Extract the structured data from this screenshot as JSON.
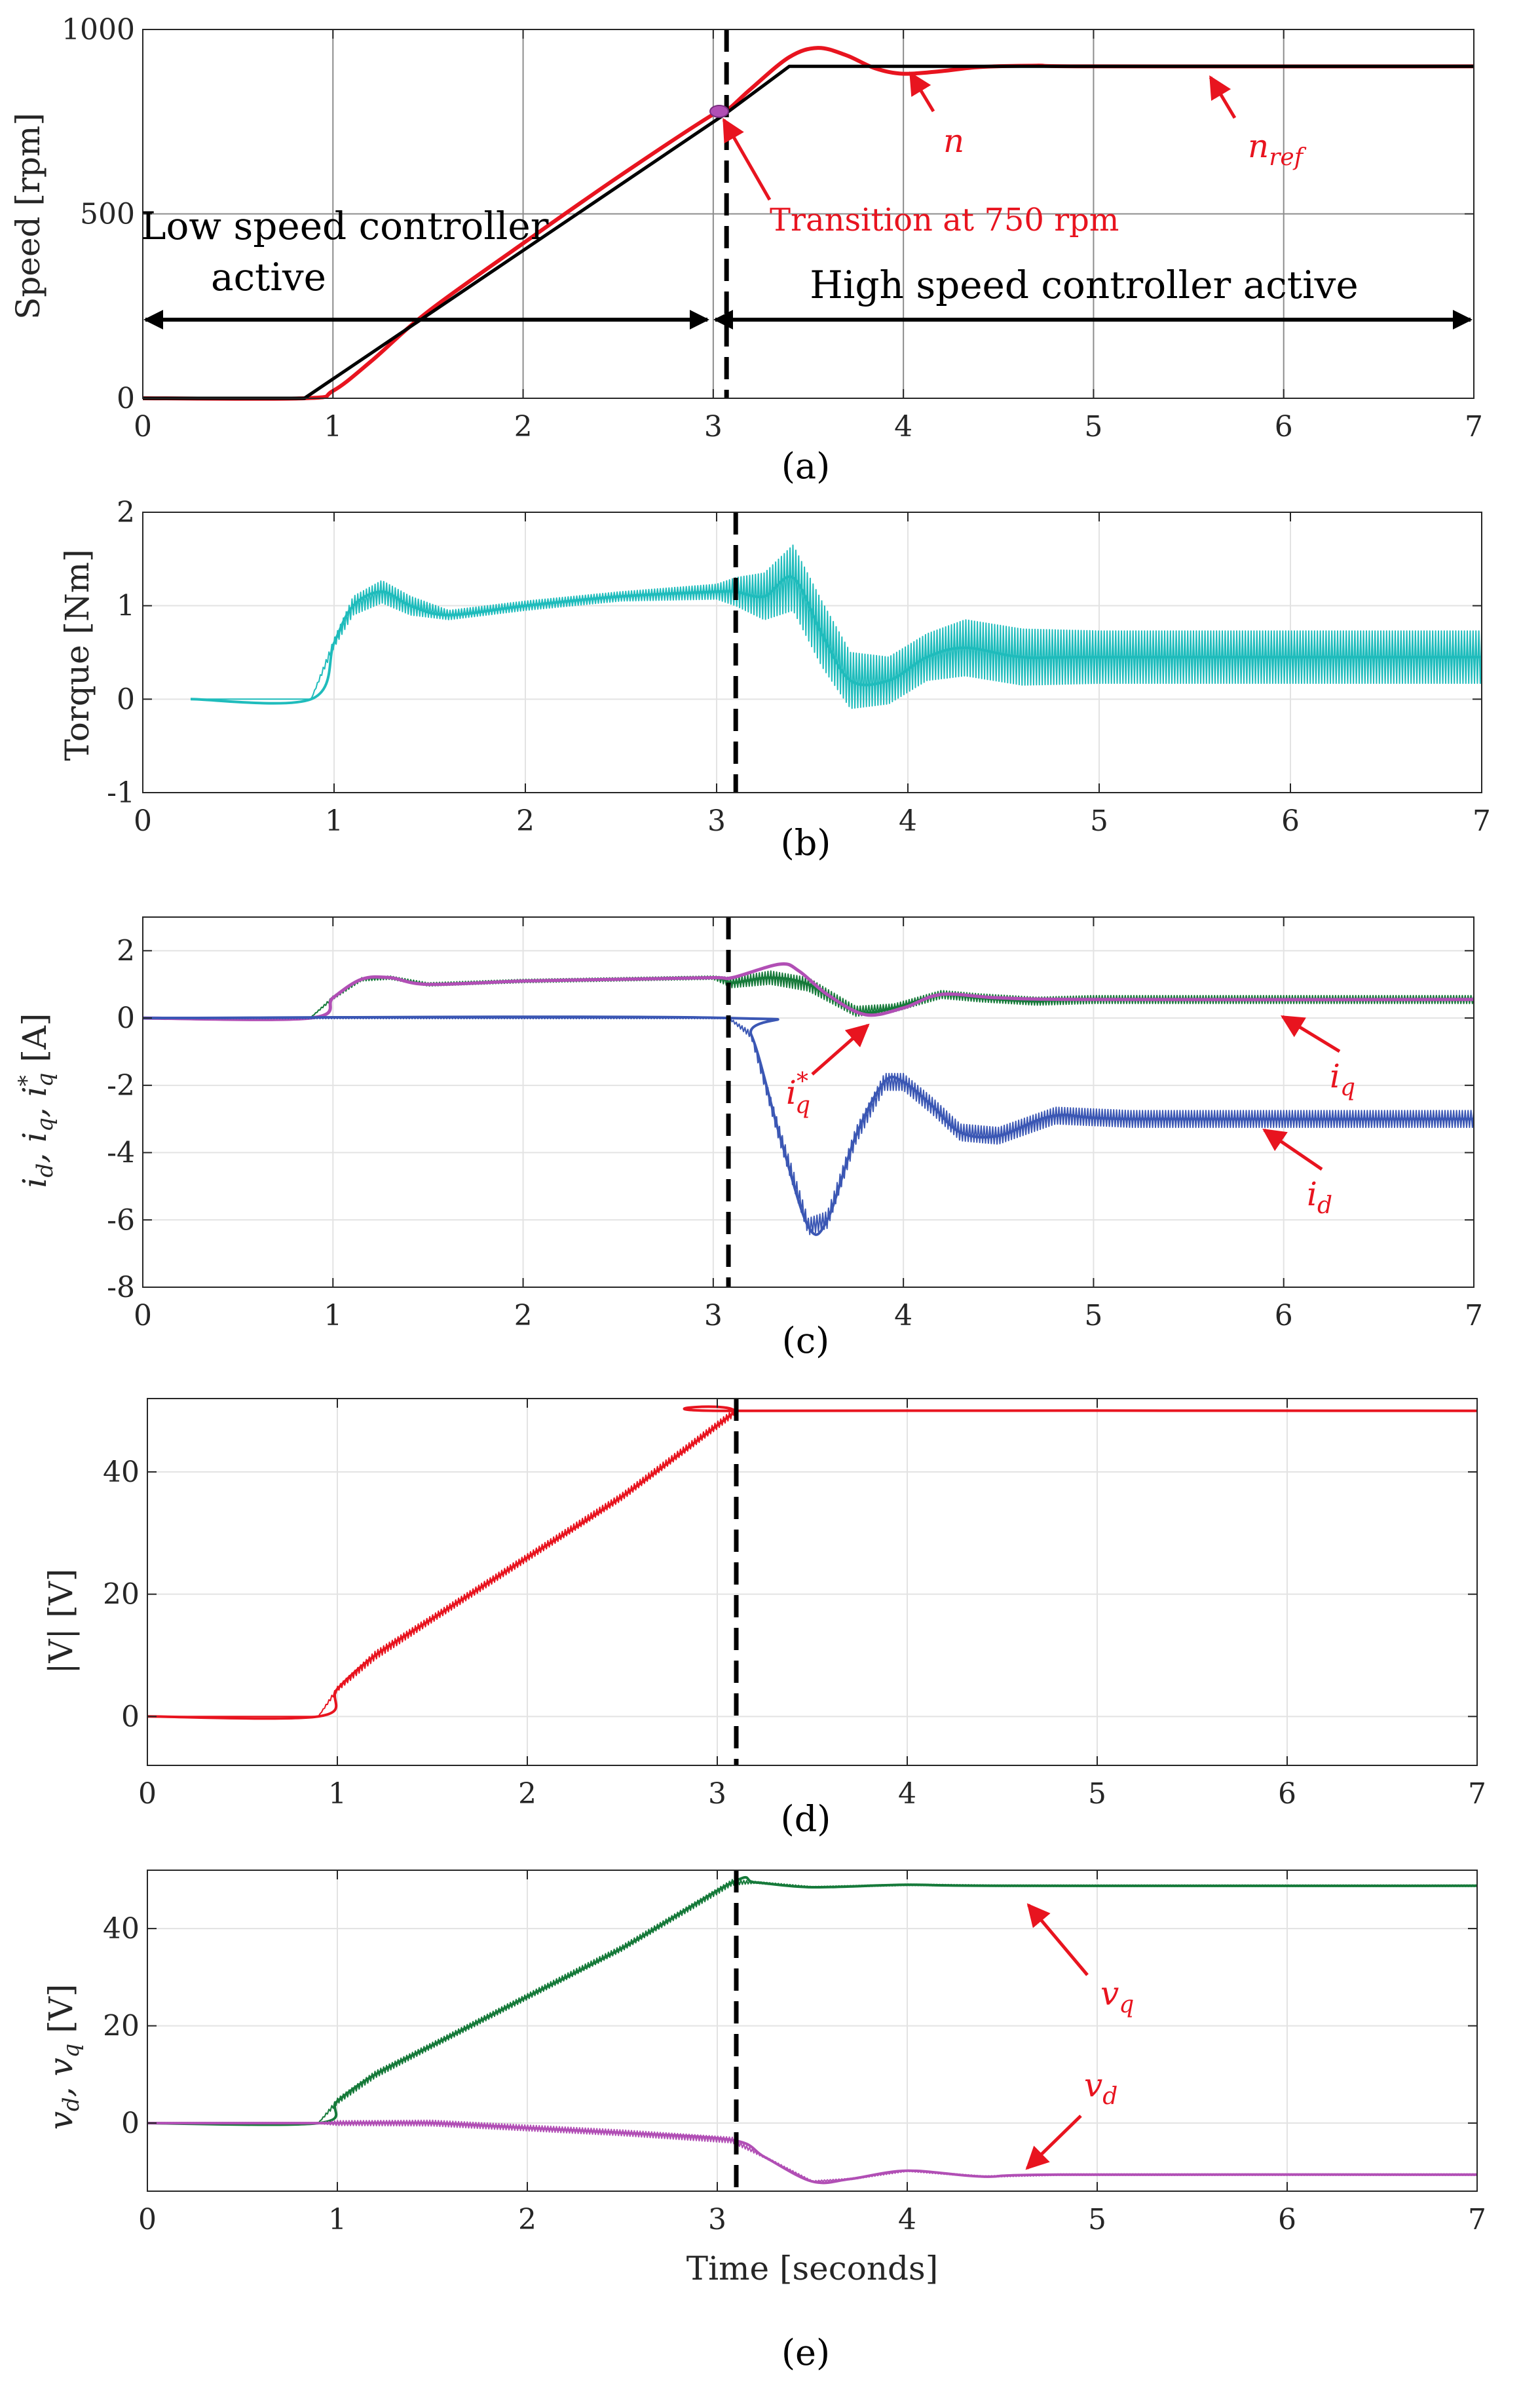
{
  "chart_data": [
    {
      "id": "a",
      "type": "line",
      "caption": "(a)",
      "ylabel": "Speed [rpm]",
      "xlabel": "",
      "xlim": [
        0,
        7
      ],
      "ylim": [
        0,
        1000
      ],
      "xticks": [
        "0",
        "1",
        "2",
        "3",
        "4",
        "5",
        "6",
        "7"
      ],
      "yticks": [
        "0",
        "500",
        "1000"
      ],
      "ytick_values": [
        0,
        500,
        1000
      ],
      "grid": true,
      "transition_time": 3.07,
      "series": [
        {
          "name": "n_ref",
          "color": "#000000",
          "x": [
            0,
            0.85,
            3.06,
            3.4,
            7
          ],
          "y": [
            0,
            0,
            770,
            900,
            900
          ]
        },
        {
          "name": "n",
          "color": "#e8141f",
          "x": [
            0,
            0.85,
            1.0,
            1.2,
            1.5,
            2.0,
            2.5,
            3.0,
            3.07,
            3.2,
            3.4,
            3.55,
            3.7,
            3.85,
            4.0,
            4.2,
            4.4,
            4.7,
            5.0,
            7.0
          ],
          "y": [
            0,
            0,
            20,
            100,
            235,
            420,
            600,
            770,
            780,
            840,
            925,
            950,
            930,
            895,
            880,
            887,
            898,
            902,
            900,
            900
          ]
        }
      ],
      "annotations": {
        "transition": "Transition at 750 rpm",
        "low": "Low speed controller",
        "low2": "active",
        "high": "High speed controller active",
        "n": "n",
        "nref": "n",
        "nref_sub": "ref"
      }
    },
    {
      "id": "b",
      "type": "line",
      "caption": "(b)",
      "ylabel": "Torque [Nm]",
      "xlim": [
        0,
        7
      ],
      "ylim": [
        -1,
        2
      ],
      "xticks": [
        "0",
        "1",
        "2",
        "3",
        "4",
        "5",
        "6",
        "7"
      ],
      "yticks": [
        "-1",
        "0",
        "1",
        "2"
      ],
      "ytick_values": [
        -1,
        0,
        1,
        2
      ],
      "grid": true,
      "transition_time": 3.1,
      "series": [
        {
          "name": "torque",
          "color": "#1fbcbc",
          "x": [
            0.25,
            0.88,
            1.0,
            1.1,
            1.25,
            1.4,
            1.6,
            2.0,
            2.5,
            3.0,
            3.1,
            3.25,
            3.4,
            3.55,
            3.7,
            3.9,
            4.1,
            4.3,
            4.6,
            5.0,
            7.0
          ],
          "y": [
            0,
            0,
            0.6,
            1.0,
            1.15,
            1.0,
            0.9,
            1.0,
            1.1,
            1.15,
            1.15,
            1.1,
            1.3,
            0.7,
            0.2,
            0.2,
            0.45,
            0.55,
            0.45,
            0.45,
            0.45
          ],
          "ripple": [
            0,
            0,
            0.05,
            0.1,
            0.12,
            0.1,
            0.05,
            0.05,
            0.05,
            0.08,
            0.15,
            0.25,
            0.35,
            0.35,
            0.3,
            0.25,
            0.25,
            0.3,
            0.3,
            0.28,
            0.28
          ]
        }
      ]
    },
    {
      "id": "c",
      "type": "line",
      "caption": "(c)",
      "ylabel": "i_d, i_q, i*_q [A]",
      "xlim": [
        0,
        7
      ],
      "ylim": [
        -8,
        3
      ],
      "xticks": [
        "0",
        "1",
        "2",
        "3",
        "4",
        "5",
        "6",
        "7"
      ],
      "yticks": [
        "-8",
        "-6",
        "-4",
        "-2",
        "0",
        "2"
      ],
      "ytick_values": [
        -8,
        -6,
        -4,
        -2,
        0,
        2
      ],
      "grid": true,
      "transition_time": 3.08,
      "series": [
        {
          "name": "i_q",
          "color": "#167a3a",
          "x": [
            0,
            0.88,
            1.0,
            1.15,
            1.3,
            1.5,
            2.0,
            2.5,
            3.0,
            3.1,
            3.3,
            3.5,
            3.75,
            3.95,
            4.2,
            4.4,
            4.7,
            5.0,
            7.0
          ],
          "y": [
            0,
            0,
            0.6,
            1.15,
            1.2,
            1.0,
            1.1,
            1.15,
            1.2,
            1.05,
            1.2,
            1.0,
            0.2,
            0.3,
            0.7,
            0.6,
            0.5,
            0.55,
            0.55
          ],
          "ripple": [
            0,
            0,
            0.05,
            0.05,
            0.05,
            0.05,
            0.05,
            0.05,
            0.05,
            0.15,
            0.2,
            0.2,
            0.15,
            0.12,
            0.12,
            0.12,
            0.12,
            0.12,
            0.12
          ]
        },
        {
          "name": "i*_q",
          "color": "#b14fb5",
          "x": [
            0,
            0.88,
            1.0,
            1.15,
            1.3,
            1.5,
            2.0,
            2.5,
            3.0,
            3.1,
            3.35,
            3.45,
            3.6,
            3.8,
            4.0,
            4.2,
            4.5,
            5.0,
            7.0
          ],
          "y": [
            0,
            0,
            0.6,
            1.15,
            1.2,
            1.0,
            1.1,
            1.15,
            1.2,
            1.2,
            1.6,
            1.4,
            0.7,
            0.1,
            0.3,
            0.7,
            0.6,
            0.55,
            0.55
          ]
        },
        {
          "name": "i_d",
          "color": "#3b57b4",
          "x": [
            0,
            3.08,
            3.2,
            3.35,
            3.5,
            3.6,
            3.75,
            3.9,
            4.0,
            4.15,
            4.3,
            4.5,
            4.8,
            5.2,
            7.0
          ],
          "y": [
            0,
            0,
            -0.5,
            -3.5,
            -6.2,
            -6.0,
            -3.5,
            -1.9,
            -1.9,
            -2.6,
            -3.4,
            -3.5,
            -2.9,
            -3.0,
            -3.0
          ],
          "ripple": [
            0.02,
            0.02,
            0.1,
            0.25,
            0.25,
            0.25,
            0.25,
            0.25,
            0.25,
            0.25,
            0.25,
            0.25,
            0.25,
            0.25,
            0.25
          ]
        }
      ],
      "annotations": {
        "iq": "i",
        "iq_sub": "q",
        "iqs": "i",
        "iqs_sub": "q",
        "iqs_sup": "*",
        "id": "i",
        "id_sub": "d"
      }
    },
    {
      "id": "d",
      "type": "line",
      "caption": "(d)",
      "ylabel": "|V| [V]",
      "xlim": [
        0,
        7
      ],
      "ylim": [
        -8,
        52
      ],
      "xticks": [
        "0",
        "1",
        "2",
        "3",
        "4",
        "5",
        "6",
        "7"
      ],
      "yticks": [
        "0",
        "20",
        "40"
      ],
      "ytick_values": [
        0,
        20,
        40
      ],
      "grid": true,
      "transition_time": 3.1,
      "series": [
        {
          "name": "|V|",
          "color": "#e8141f",
          "x": [
            0,
            0.9,
            1.0,
            1.2,
            1.5,
            2.0,
            2.5,
            3.08,
            3.1,
            7.0
          ],
          "y": [
            0,
            0,
            4.5,
            10,
            16,
            26,
            36,
            49.5,
            50,
            50
          ],
          "ripple": [
            0,
            0,
            0.4,
            0.7,
            0.6,
            0.6,
            0.6,
            0.6,
            0,
            0
          ]
        }
      ]
    },
    {
      "id": "e",
      "type": "line",
      "caption": "(e)",
      "ylabel": "v_d, v_q [V]",
      "xlabel": "Time [seconds]",
      "xlim": [
        0,
        7
      ],
      "ylim": [
        -14,
        52
      ],
      "xticks": [
        "0",
        "1",
        "2",
        "3",
        "4",
        "5",
        "6",
        "7"
      ],
      "yticks": [
        "0",
        "20",
        "40"
      ],
      "ytick_values": [
        0,
        20,
        40
      ],
      "grid": true,
      "transition_time": 3.1,
      "series": [
        {
          "name": "v_q",
          "color": "#167a3a",
          "x": [
            0,
            0.9,
            1.0,
            1.2,
            1.5,
            2.0,
            2.5,
            3.08,
            3.2,
            3.5,
            4.0,
            4.5,
            7.0
          ],
          "y": [
            0,
            0,
            4.5,
            10,
            16,
            26,
            36,
            49.5,
            49.5,
            48.5,
            49,
            48.8,
            48.8
          ],
          "ripple": [
            0,
            0,
            0.6,
            0.7,
            0.6,
            0.6,
            0.6,
            0.6,
            0.2,
            0.15,
            0.15,
            0.15,
            0.15
          ]
        },
        {
          "name": "v_d",
          "color": "#b14fb5",
          "x": [
            0,
            0.9,
            1.0,
            1.5,
            2.0,
            2.5,
            3.08,
            3.25,
            3.5,
            3.7,
            4.0,
            4.4,
            4.8,
            7.0
          ],
          "y": [
            0,
            0,
            0,
            0,
            -1,
            -2,
            -3.5,
            -7,
            -12,
            -11.5,
            -9.8,
            -11,
            -10.6,
            -10.6
          ],
          "ripple": [
            0.1,
            0.1,
            0.5,
            0.6,
            0.6,
            0.6,
            0.6,
            0.2,
            0.15,
            0.15,
            0.15,
            0.15,
            0.15,
            0.15
          ]
        }
      ],
      "annotations": {
        "vq": "v",
        "vq_sub": "q",
        "vd": "v",
        "vd_sub": "d"
      }
    }
  ]
}
